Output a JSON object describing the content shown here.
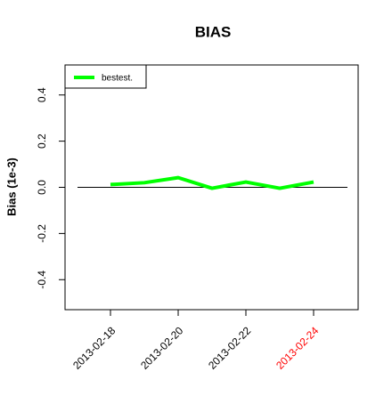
{
  "chart_data": {
    "type": "line",
    "title": "BIAS",
    "y_label": "Bias (1e-3)",
    "categories": [
      "2013-02-18",
      null,
      "2013-02-20",
      null,
      "2013-02-22",
      null,
      "2013-02-24"
    ],
    "xtick_colors": [
      "#000000",
      null,
      "#000000",
      null,
      "#000000",
      null,
      "#ff0000"
    ],
    "series": [
      {
        "name": "bestest.",
        "color": "#00ff00",
        "values": [
          0.012,
          0.02,
          0.042,
          -0.004,
          0.023,
          -0.004,
          0.023
        ]
      }
    ],
    "ylim": [
      -0.53,
      0.53
    ],
    "yticks": [
      -0.4,
      -0.2,
      {
        "value": 0,
        "label": "0.0"
      },
      0.2,
      0.4
    ],
    "hline": 0,
    "legend": "top-left",
    "grid": false
  }
}
